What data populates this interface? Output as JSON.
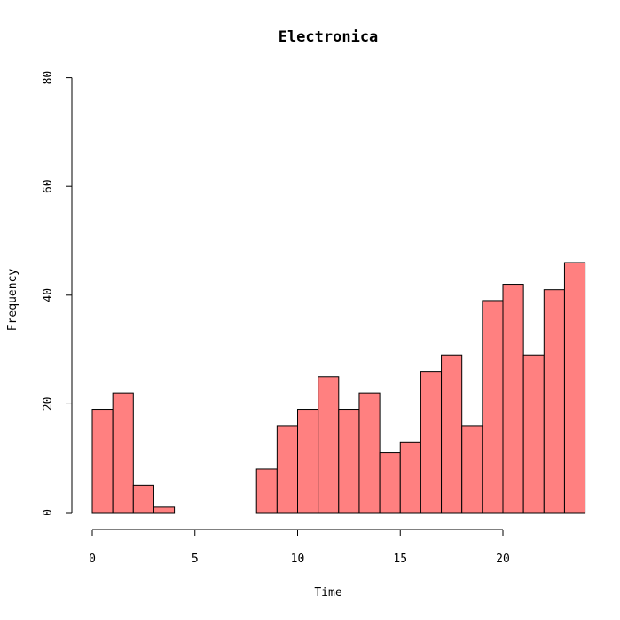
{
  "chart_data": {
    "type": "bar",
    "title": "Electronica",
    "xlabel": "Time",
    "ylabel": "Frequency",
    "bar_color": "#FF8080",
    "bin_width": 1,
    "bin_starts": [
      0,
      1,
      2,
      3,
      4,
      5,
      6,
      7,
      8,
      9,
      10,
      11,
      12,
      13,
      14,
      15,
      16,
      17,
      18,
      19,
      20,
      21,
      22,
      23
    ],
    "values": [
      19,
      22,
      5,
      1,
      0,
      0,
      0,
      0,
      8,
      16,
      19,
      25,
      19,
      22,
      11,
      13,
      26,
      29,
      16,
      39,
      42,
      29,
      41,
      46
    ],
    "xlim": [
      0,
      24
    ],
    "ylim": [
      0,
      80
    ],
    "x_ticks": [
      0,
      5,
      10,
      15,
      20
    ],
    "x_tick_labels": [
      "0",
      "5",
      "10",
      "15",
      "20"
    ],
    "y_ticks": [
      0,
      20,
      40,
      60,
      80
    ],
    "y_tick_labels": [
      "0",
      "20",
      "40",
      "60",
      "80"
    ],
    "grid": false,
    "legend": "none"
  }
}
